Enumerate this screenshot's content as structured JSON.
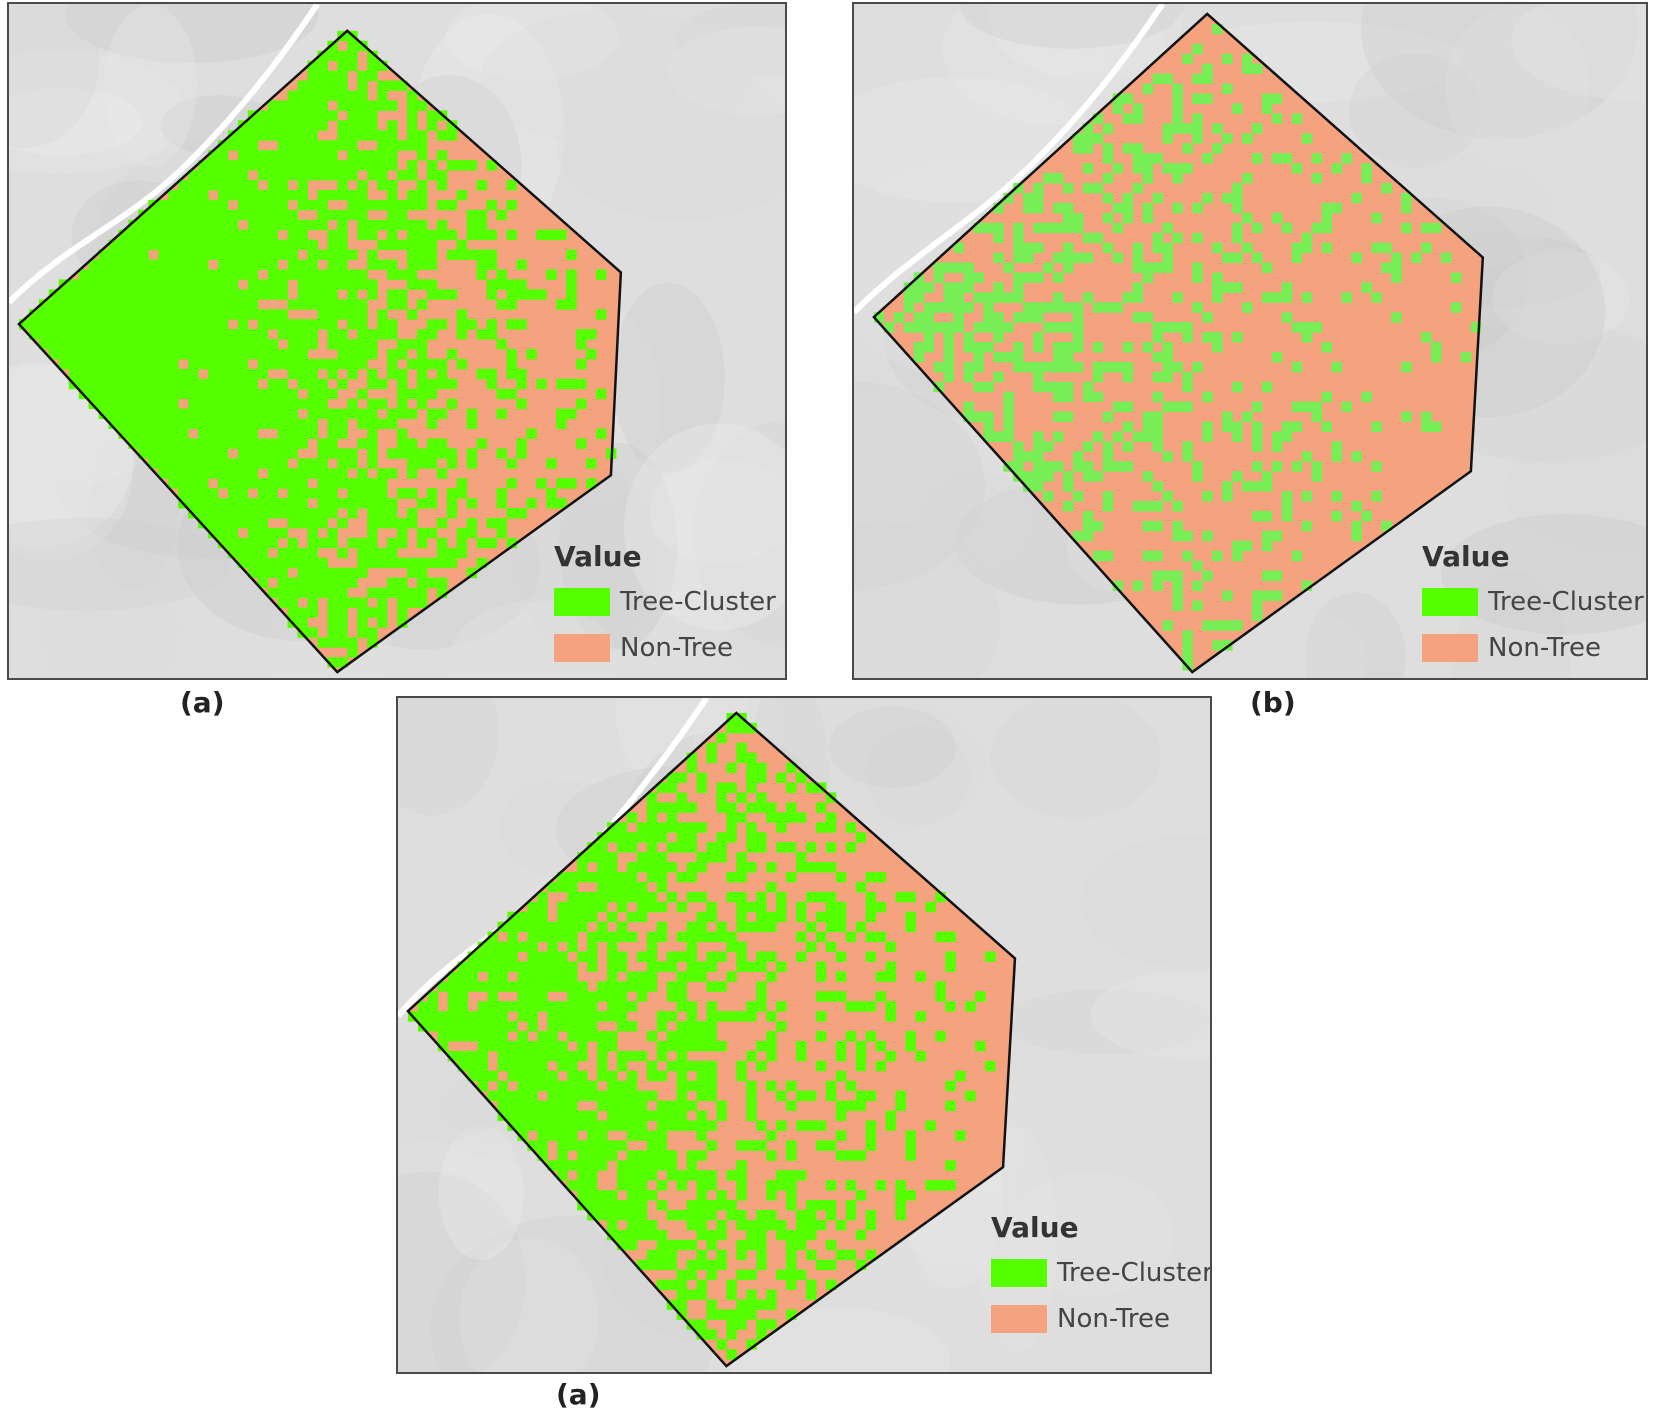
{
  "colors": {
    "tree": "#55ff00",
    "tree_b": "#77ee55",
    "nontree": "#f5a27e",
    "basemap": "#dedede",
    "outline": "#111111"
  },
  "legend_title": "Value",
  "legend_items": [
    {
      "label": "Tree-Cluster",
      "class": "tree"
    },
    {
      "label": "Non-Tree",
      "class": "nontree"
    }
  ],
  "panels": [
    {
      "caption": "(a)",
      "tree_fraction": 0.7
    },
    {
      "caption": "(b)",
      "tree_fraction": 0.25
    },
    {
      "caption": "(a)",
      "tree_fraction": 0.45
    }
  ]
}
